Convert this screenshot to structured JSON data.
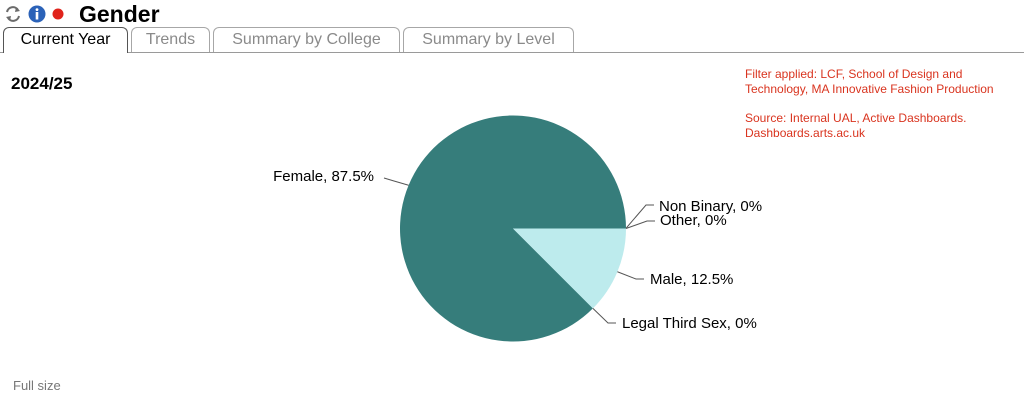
{
  "header": {
    "title": "Gender",
    "icons": [
      "refresh-icon",
      "info-icon",
      "record-icon"
    ],
    "record_color": "#e0231b",
    "info_color": "#2b62b8"
  },
  "tabs": [
    {
      "label": "Current Year",
      "active": true
    },
    {
      "label": "Trends",
      "active": false
    },
    {
      "label": "Summary by College",
      "active": false
    },
    {
      "label": "Summary by Level",
      "active": false
    }
  ],
  "year_label": "2024/25",
  "notes": {
    "filter": "Filter applied: LCF, School of Design and Technology, MA Innovative Fashion Production",
    "source": "Source: Internal UAL, Active Dashboards. Dashboards.arts.ac.uk",
    "color": "#d9341f"
  },
  "footer": {
    "full_size_label": "Full size"
  },
  "chart_data": {
    "type": "pie",
    "slices": [
      {
        "name": "Female",
        "value": 87.5,
        "label": "Female, 87.5%",
        "color": "#367d7b"
      },
      {
        "name": "Male",
        "value": 12.5,
        "label": "Male, 12.5%",
        "color": "#bdebed"
      },
      {
        "name": "Legal Third Sex",
        "value": 0,
        "label": "Legal Third Sex, 0%",
        "color": "#367d7b"
      },
      {
        "name": "Other",
        "value": 0,
        "label": "Other, 0%",
        "color": "#367d7b"
      },
      {
        "name": "Non Binary",
        "value": 0,
        "label": "Non Binary, 0%",
        "color": "#367d7b"
      }
    ],
    "legend": "none"
  }
}
